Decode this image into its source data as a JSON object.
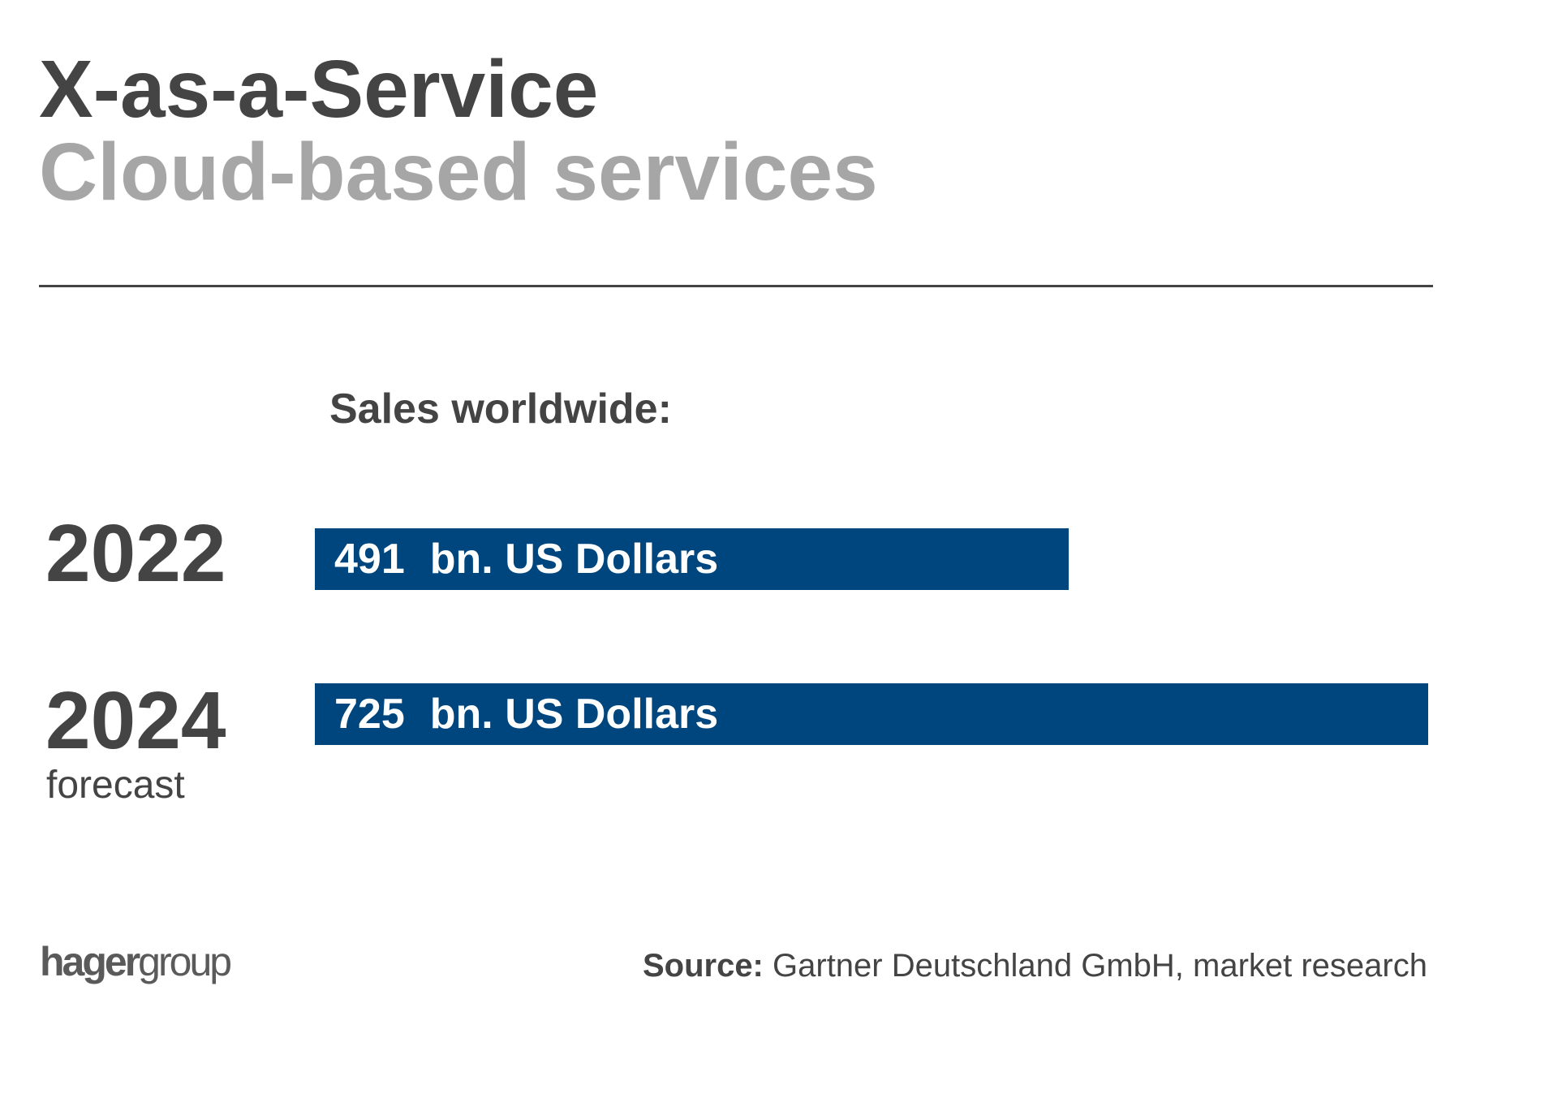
{
  "title": "X-as-a-Service",
  "subtitle": "Cloud-based services",
  "chart_heading": "Sales worldwide:",
  "chart_data": {
    "type": "bar",
    "orientation": "horizontal",
    "categories": [
      "2022",
      "2024"
    ],
    "values": [
      491,
      725
    ],
    "unit": "bn. US Dollars",
    "category_notes": [
      "",
      "forecast"
    ],
    "bar_color": "#00467e",
    "grid": false,
    "legend": "none"
  },
  "logo": {
    "bold": "hager",
    "light": "group"
  },
  "source": {
    "label": "Source:",
    "text": "Gartner Deutschland GmbH, market research"
  },
  "colors": {
    "text": "#444444",
    "subtitle": "#a6a6a6",
    "bar": "#00467e"
  }
}
